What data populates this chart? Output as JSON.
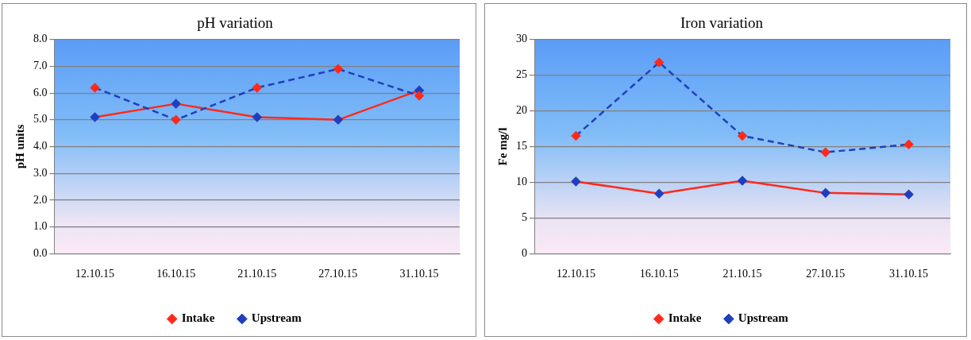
{
  "chart_data": [
    {
      "type": "line",
      "title": "pH variation",
      "ylabel": "pH units",
      "categories": [
        "12.10.15",
        "16.10.15",
        "21.10.15",
        "27.10.15",
        "31.10.15"
      ],
      "series": [
        {
          "name": "Intake",
          "color": "#1f3fbf",
          "line_style": "dashed",
          "values": [
            6.2,
            5.0,
            6.2,
            6.9,
            5.9
          ]
        },
        {
          "name": "Upstream",
          "color": "#ff2a1a",
          "line_style": "solid",
          "values": [
            5.1,
            5.6,
            5.1,
            5.0,
            6.1
          ]
        }
      ],
      "ylim": [
        0,
        8
      ],
      "yticks": [
        {
          "value": 0,
          "label": "0.0"
        },
        {
          "value": 1,
          "label": "1.0"
        },
        {
          "value": 2,
          "label": "2.0"
        },
        {
          "value": 3,
          "label": "3.0"
        },
        {
          "value": 4,
          "label": "4.0"
        },
        {
          "value": 5,
          "label": "5.0"
        },
        {
          "value": 6,
          "label": "6.0"
        },
        {
          "value": 7,
          "label": "7.0"
        },
        {
          "value": 8,
          "label": "8.0"
        }
      ],
      "grid": "y",
      "legend": "bottom",
      "marker": "diamond"
    },
    {
      "type": "line",
      "title": "Iron variation",
      "ylabel": "Fe mg/l",
      "categories": [
        "12.10.15",
        "16.10.15",
        "21.10.15",
        "27.10.15",
        "31.10.15"
      ],
      "series": [
        {
          "name": "Intake",
          "color": "#1f3fbf",
          "line_style": "dashed",
          "values": [
            16.5,
            26.8,
            16.5,
            14.2,
            15.3
          ]
        },
        {
          "name": "Upstream",
          "color": "#ff2a1a",
          "line_style": "solid",
          "values": [
            10.1,
            8.4,
            10.2,
            8.5,
            8.3
          ]
        }
      ],
      "ylim": [
        0,
        30
      ],
      "yticks": [
        0,
        5,
        10,
        15,
        20,
        25,
        30
      ],
      "grid": "y",
      "legend": "bottom",
      "marker": "diamond"
    }
  ]
}
